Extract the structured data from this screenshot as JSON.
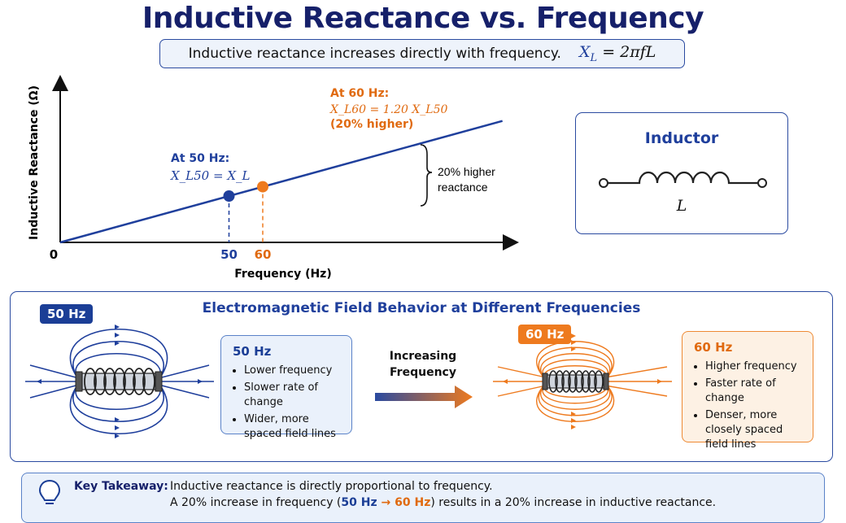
{
  "title": "Inductive Reactance vs. Frequency",
  "formula": {
    "text": "Inductive reactance increases directly with frequency.",
    "equation": "= 2πfL",
    "symbol": "X",
    "sub": "L"
  },
  "chart_data": {
    "type": "line",
    "ylabel": "Inductive Reactance (Ω)",
    "xlabel": "Frequency (Hz)",
    "origin_label": "0",
    "x": [
      0,
      50,
      60
    ],
    "y_relative": [
      0,
      1.0,
      1.2
    ],
    "points": [
      {
        "x": 50,
        "tick": "50",
        "label": "At 50 Hz:",
        "formula": "X_L50 = X_L",
        "color": "#1f3f9c"
      },
      {
        "x": 60,
        "tick": "60",
        "label": "At 60 Hz:",
        "formula": "X_L60 = 1.20 X_L50",
        "note": "(20% higher)",
        "color": "#ee7a1e"
      }
    ],
    "bracket_label_1": "20% higher",
    "bracket_label_2": "reactance"
  },
  "inductor": {
    "title": "Inductor",
    "symbol": "L"
  },
  "em": {
    "title": "Electromagnetic Field Behavior at Different Frequencies",
    "badge50": "50 Hz",
    "badge60": "60 Hz",
    "card50": {
      "title": "50 Hz",
      "items": [
        "Lower frequency",
        "Slower rate of change",
        "Wider, more spaced field lines"
      ]
    },
    "card60": {
      "title": "60 Hz",
      "items": [
        "Higher frequency",
        "Faster rate of change",
        "Denser, more closely spaced field lines"
      ]
    },
    "arrow_line1": "Increasing",
    "arrow_line2": "Frequency"
  },
  "takeaway": {
    "label": "Key Takeaway:",
    "line1": "Inductive reactance is directly proportional to frequency.",
    "line2_a": "A 20% increase in frequency (",
    "line2_50": "50 Hz",
    "line2_arrow": " → ",
    "line2_60": "60 Hz",
    "line2_b": ") results in a 20% increase in inductive reactance."
  },
  "colors": {
    "navy": "#16206a",
    "blue": "#1f3f9c",
    "orange": "#ee7a1e"
  }
}
